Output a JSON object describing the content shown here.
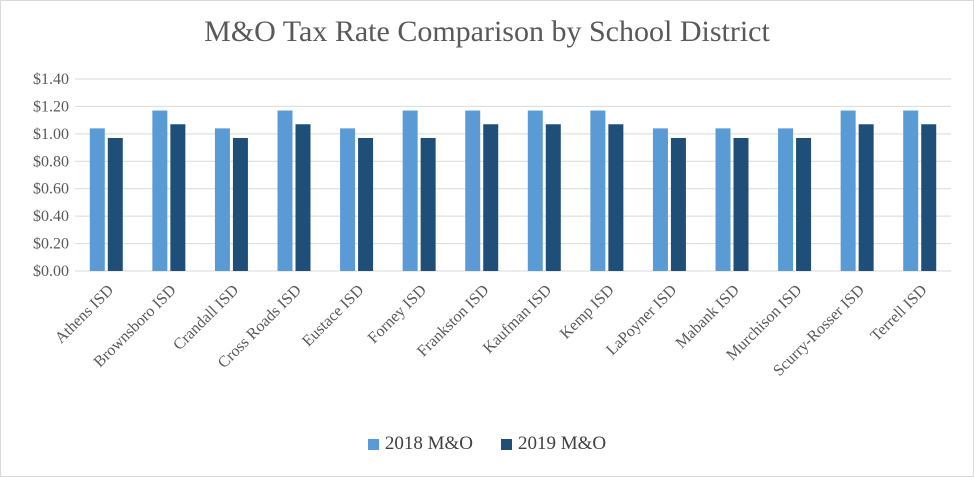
{
  "chart_data": {
    "type": "bar",
    "title": "M&O Tax Rate Comparison by School District",
    "xlabel": "",
    "ylabel": "",
    "ylim": [
      0,
      1.4
    ],
    "yticks": [
      "$0.00",
      "$0.20",
      "$0.40",
      "$0.60",
      "$0.80",
      "$1.00",
      "$1.20",
      "$1.40"
    ],
    "ytick_values": [
      0,
      0.2,
      0.4,
      0.6,
      0.8,
      1.0,
      1.2,
      1.4
    ],
    "grid": true,
    "legend_position": "bottom",
    "categories": [
      "Athens ISD",
      "Brownsboro ISD",
      "Crandall ISD",
      "Cross Roads ISD",
      "Eustace ISD",
      "Forney ISD",
      "Frankston ISD",
      "Kaufman ISD",
      "Kemp ISD",
      "LaPoyner ISD",
      "Mabank ISD",
      "Murchison ISD",
      "Scurry-Rosser ISD",
      "Terrell ISD"
    ],
    "series": [
      {
        "name": "2018 M&O",
        "color": "#5b9bd5",
        "values": [
          1.04,
          1.17,
          1.04,
          1.17,
          1.04,
          1.17,
          1.17,
          1.17,
          1.17,
          1.04,
          1.04,
          1.04,
          1.17,
          1.17
        ]
      },
      {
        "name": "2019 M&O",
        "color": "#1f4e79",
        "values": [
          0.97,
          1.07,
          0.97,
          1.07,
          0.97,
          0.97,
          1.07,
          1.07,
          1.07,
          0.97,
          0.97,
          0.97,
          1.07,
          1.07
        ]
      }
    ]
  }
}
